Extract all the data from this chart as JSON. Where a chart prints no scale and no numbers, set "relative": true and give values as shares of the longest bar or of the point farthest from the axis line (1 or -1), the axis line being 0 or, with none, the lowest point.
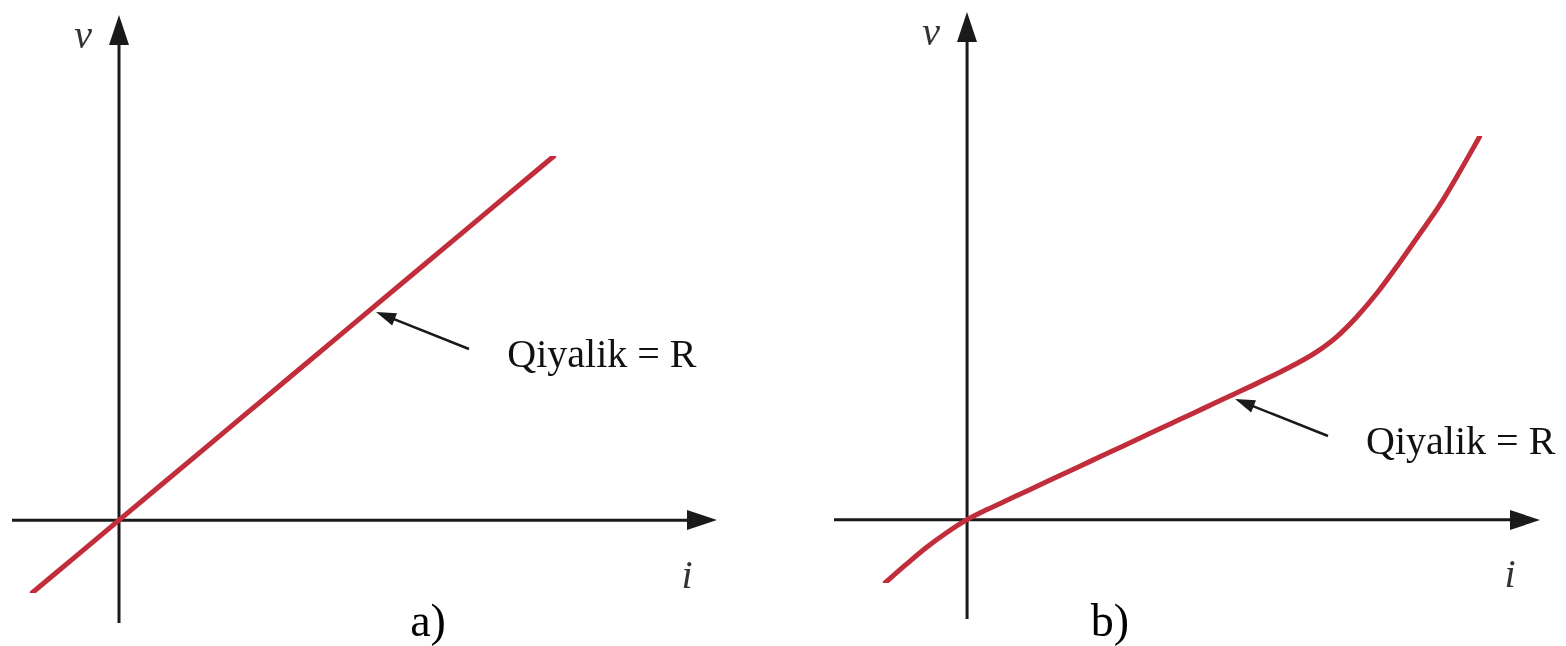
{
  "chart_data": [
    {
      "type": "line",
      "title": "a)",
      "xlabel": "i",
      "ylabel": "v",
      "relative": true,
      "categories": [
        null,
        null,
        null,
        null,
        null,
        null,
        null,
        null,
        null,
        null,
        null,
        null,
        null
      ],
      "series": [
        {
          "color": "#c12d3a",
          "values": [
            -0.2,
            -0.1,
            0,
            0.1,
            0.2,
            0.3,
            0.4,
            0.5,
            0.6,
            0.7,
            0.8,
            0.9,
            1
          ]
        }
      ],
      "annotations": [
        "Qiyalik = R"
      ]
    },
    {
      "type": "line",
      "title": "b)",
      "xlabel": "i",
      "ylabel": "v",
      "relative": true,
      "categories": [
        null,
        null,
        null,
        null,
        null,
        null,
        null,
        null,
        null,
        null,
        null,
        null,
        null,
        null,
        null,
        null,
        null,
        null,
        null,
        null,
        null,
        null,
        null,
        null,
        null,
        null,
        null,
        null,
        null,
        null
      ],
      "series": [
        {
          "color": "#c12d3a",
          "values": [
            -0.165,
            -0.118,
            -0.073,
            -0.034,
            0,
            0.027,
            0.052,
            0.077,
            0.102,
            0.127,
            0.152,
            0.177,
            0.202,
            0.227,
            0.252,
            0.277,
            0.302,
            0.327,
            0.352,
            0.378,
            0.405,
            0.436,
            0.476,
            0.529,
            0.592,
            0.664,
            0.74,
            0.817,
            0.906,
            1
          ]
        }
      ],
      "annotations": [
        "Qiyalik = R"
      ]
    }
  ]
}
